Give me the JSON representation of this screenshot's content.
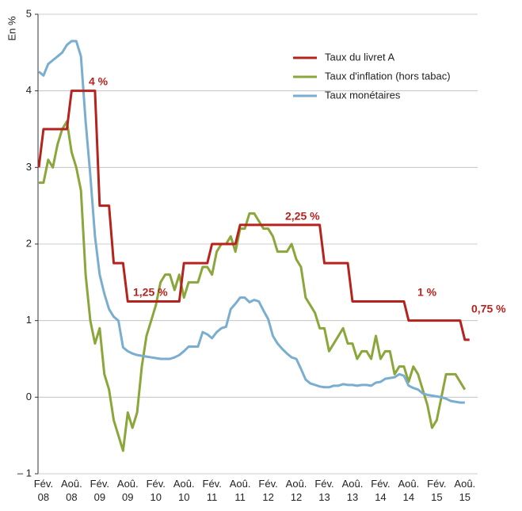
{
  "chart_data": {
    "type": "line",
    "y_label": "En %",
    "categories": [
      null,
      "Fév. 08",
      null,
      null,
      null,
      null,
      null,
      "Aoû. 08",
      null,
      null,
      null,
      null,
      null,
      "Fév. 09",
      null,
      null,
      null,
      null,
      null,
      "Aoû. 09",
      null,
      null,
      null,
      null,
      null,
      "Fév. 10",
      null,
      null,
      null,
      null,
      null,
      "Aoû. 10",
      null,
      null,
      null,
      null,
      null,
      "Fév. 11",
      null,
      null,
      null,
      null,
      null,
      "Aoû. 11",
      null,
      null,
      null,
      null,
      null,
      "Fév. 12",
      null,
      null,
      null,
      null,
      null,
      "Aoû. 12",
      null,
      null,
      null,
      null,
      null,
      "Fév. 13",
      null,
      null,
      null,
      null,
      null,
      "Aoû. 13",
      null,
      null,
      null,
      null,
      null,
      "Fév. 14",
      null,
      null,
      null,
      null,
      null,
      "Aoû. 14",
      null,
      null,
      null,
      null,
      null,
      "Fév. 15",
      null,
      null,
      null,
      null,
      null,
      "Aoû. 15",
      null
    ],
    "series": [
      {
        "name": "Taux du livret A",
        "color": "#b5231f",
        "values": [
          3,
          3.5,
          3.5,
          3.5,
          3.5,
          3.5,
          3.5,
          4,
          4,
          4,
          4,
          4,
          4,
          2.5,
          2.5,
          2.5,
          1.75,
          1.75,
          1.75,
          1.25,
          1.25,
          1.25,
          1.25,
          1.25,
          1.25,
          1.25,
          1.25,
          1.25,
          1.25,
          1.25,
          1.25,
          1.75,
          1.75,
          1.75,
          1.75,
          1.75,
          1.75,
          2,
          2,
          2,
          2,
          2,
          2,
          2.25,
          2.25,
          2.25,
          2.25,
          2.25,
          2.25,
          2.25,
          2.25,
          2.25,
          2.25,
          2.25,
          2.25,
          2.25,
          2.25,
          2.25,
          2.25,
          2.25,
          2.25,
          1.75,
          1.75,
          1.75,
          1.75,
          1.75,
          1.75,
          1.25,
          1.25,
          1.25,
          1.25,
          1.25,
          1.25,
          1.25,
          1.25,
          1.25,
          1.25,
          1.25,
          1.25,
          1,
          1,
          1,
          1,
          1,
          1,
          1,
          1,
          1,
          1,
          1,
          1,
          0.75,
          0.75
        ]
      },
      {
        "name": "Taux d'inflation (hors tabac)",
        "color": "#8ba63a",
        "values": [
          2.8,
          2.8,
          3.1,
          3.0,
          3.3,
          3.5,
          3.6,
          3.2,
          3.0,
          2.7,
          1.6,
          1.0,
          0.7,
          0.9,
          0.3,
          0.1,
          -0.3,
          -0.5,
          -0.7,
          -0.2,
          -0.4,
          -0.2,
          0.4,
          0.8,
          1.0,
          1.2,
          1.5,
          1.6,
          1.6,
          1.4,
          1.6,
          1.3,
          1.5,
          1.5,
          1.5,
          1.7,
          1.7,
          1.6,
          1.9,
          2.0,
          2.0,
          2.1,
          1.9,
          2.2,
          2.2,
          2.4,
          2.4,
          2.3,
          2.2,
          2.2,
          2.1,
          1.9,
          1.9,
          1.9,
          2.0,
          1.8,
          1.7,
          1.3,
          1.2,
          1.1,
          0.9,
          0.9,
          0.6,
          0.7,
          0.8,
          0.9,
          0.7,
          0.7,
          0.5,
          0.6,
          0.6,
          0.5,
          0.8,
          0.5,
          0.6,
          0.6,
          0.3,
          0.4,
          0.4,
          0.2,
          0.4,
          0.3,
          0.1,
          -0.1,
          -0.4,
          -0.3,
          0.0,
          0.3,
          0.3,
          0.3,
          0.2,
          0.1,
          null
        ]
      },
      {
        "name": "Taux monétaires",
        "color": "#7aaed0",
        "values": [
          4.25,
          4.2,
          4.35,
          4.4,
          4.45,
          4.5,
          4.6,
          4.65,
          4.65,
          4.45,
          3.6,
          2.9,
          2.1,
          1.6,
          1.35,
          1.15,
          1.05,
          1.0,
          0.65,
          0.6,
          0.57,
          0.55,
          0.54,
          0.53,
          0.52,
          0.51,
          0.5,
          0.5,
          0.5,
          0.52,
          0.55,
          0.6,
          0.66,
          0.66,
          0.66,
          0.85,
          0.82,
          0.77,
          0.85,
          0.9,
          0.92,
          1.15,
          1.22,
          1.3,
          1.3,
          1.24,
          1.27,
          1.25,
          1.13,
          1.02,
          0.8,
          0.7,
          0.63,
          0.57,
          0.52,
          0.5,
          0.37,
          0.23,
          0.18,
          0.16,
          0.14,
          0.13,
          0.13,
          0.15,
          0.15,
          0.17,
          0.16,
          0.16,
          0.15,
          0.16,
          0.16,
          0.15,
          0.19,
          0.2,
          0.24,
          0.25,
          0.26,
          0.3,
          0.28,
          0.15,
          0.12,
          0.1,
          0.05,
          0.03,
          0.02,
          0.01,
          0.0,
          -0.02,
          -0.05,
          -0.06,
          -0.07,
          -0.07,
          null
        ]
      }
    ],
    "annotations": [
      "4 %",
      "1,25 %",
      "2,25 %",
      "1 %",
      "0,75 %"
    ],
    "ylim": [
      -1,
      5
    ],
    "yticks": [
      {
        "value": -1,
        "label": "– 1"
      },
      0,
      1,
      2,
      3,
      4,
      5
    ],
    "grid": true,
    "legend": "top-right"
  }
}
